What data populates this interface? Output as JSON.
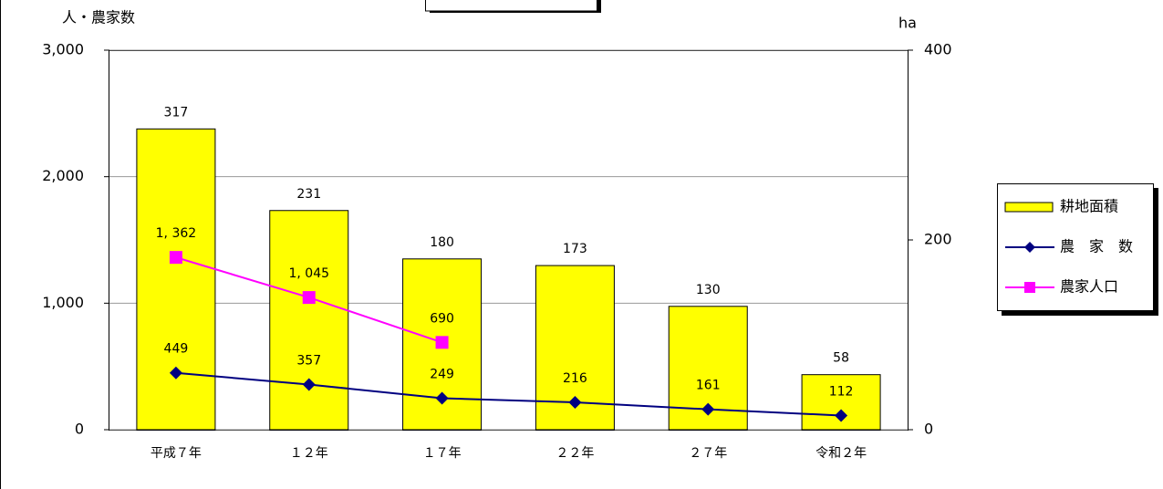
{
  "chart_data": {
    "type": "bar-line",
    "y_label": "人・農家数",
    "y2_label": "ha",
    "categories": [
      "平成７年",
      "１２年",
      "１７年",
      "２２年",
      "２７年",
      "令和２年"
    ],
    "ylim": [
      0,
      3000
    ],
    "yticks": [
      {
        "value": 0,
        "label": "0"
      },
      {
        "value": 1000,
        "label": "1,000"
      },
      {
        "value": 2000,
        "label": "2,000"
      },
      {
        "value": 3000,
        "label": "3,000"
      }
    ],
    "y2lim": [
      0,
      400
    ],
    "y2ticks": [
      0,
      200,
      400
    ],
    "grid": true,
    "legend": "right",
    "series": [
      {
        "name": "耕地面積",
        "kind": "bar",
        "axis": "y2",
        "color": "#ffff00",
        "values": [
          317,
          231,
          180,
          173,
          130,
          58
        ]
      },
      {
        "name": "農　家　数",
        "kind": "line",
        "marker": "diamond",
        "color": "#000080",
        "values": [
          449,
          357,
          249,
          216,
          161,
          112
        ]
      },
      {
        "name": "農家人口",
        "kind": "line",
        "marker": "square",
        "color": "#ff00ff",
        "values": [
          1362,
          1045,
          690,
          null,
          null,
          null
        ],
        "value_labels": [
          "1, 362",
          "1, 045",
          "690",
          null,
          null,
          null
        ]
      }
    ]
  }
}
